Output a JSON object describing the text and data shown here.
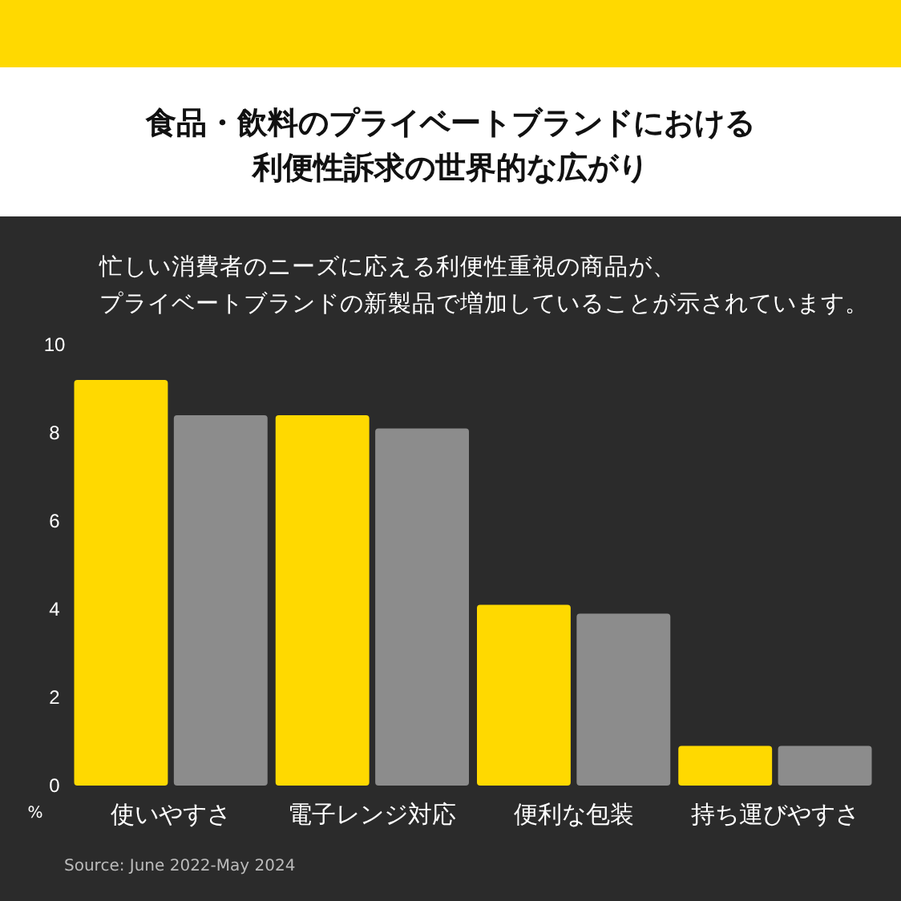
{
  "chart_data": {
    "type": "bar",
    "title": "食品・飲料のプライベートブランドにおける利便性訴求の世界的な広がり",
    "subtitle": "忙しい消費者のニーズに応える利便性重視の商品が、プライベートブランドの新製品で増加していることが示されています。",
    "ylabel": "%",
    "categories": [
      "使いやすさ",
      "電子レンジ対応",
      "便利な包装",
      "持ち運びやすさ"
    ],
    "series": [
      {
        "color": "#ffd900",
        "values": [
          9.2,
          8.4,
          4.1,
          0.9
        ]
      },
      {
        "color": "#8c8c8c",
        "values": [
          8.4,
          8.1,
          3.9,
          0.9
        ]
      }
    ],
    "ylim": [
      0,
      10
    ],
    "yticks": [
      0,
      2,
      4,
      6,
      8,
      10
    ],
    "grid": false,
    "annotations": [
      "Source: June 2022-May 2024"
    ]
  }
}
